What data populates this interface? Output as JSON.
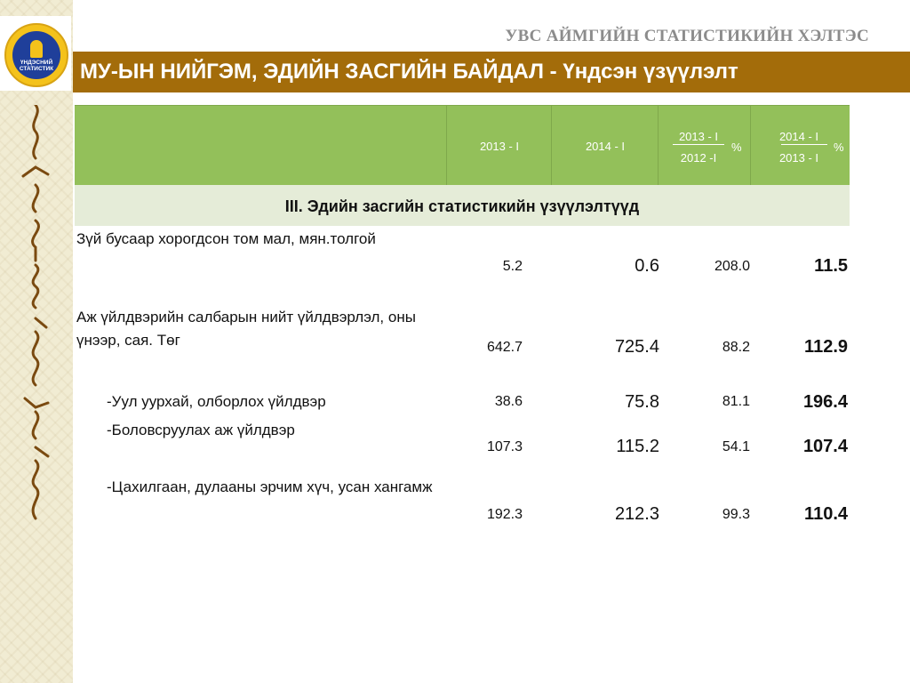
{
  "header": {
    "org_name": "УВС АЙМГИЙН СТАТИСТИКИЙН ХЭЛТЭС",
    "title": "МУ-ЫН НИЙГЭМ, ЭДИЙН ЗАСГИЙН БАЙДАЛ - Үндсэн үзүүлэлт"
  },
  "logo": {
    "line1": "ҮНДЭСНИЙ",
    "line2": "СТАТИСТИК"
  },
  "table": {
    "columns": {
      "c1": "2013 - I",
      "c2": "2014 - I",
      "c3_num": "2013 - I",
      "c3_den": "2012 -I",
      "c3_pct": "%",
      "c4_num": "2014 - I",
      "c4_den": "2013 - I",
      "c4_pct": "%"
    },
    "section": "III. Эдийн засгийн статистикийн үзүүлэлтүүд",
    "rows": [
      {
        "label": "Зүй бусаар хорогдсон том мал, мян.толгой",
        "v1": "5.2",
        "v2": "0.6",
        "v3": "208.0",
        "v4": "11.5"
      },
      {
        "label": "Аж үйлдвэрийн салбарын нийт үйлдвэрлэл, оны үнээр, сая. Төг",
        "v1": "642.7",
        "v2": "725.4",
        "v3": "88.2",
        "v4": "112.9"
      },
      {
        "label": "-Уул уурхай, олборлох үйлдвэр",
        "v1": "38.6",
        "v2": "75.8",
        "v3": "81.1",
        "v4": "196.4"
      },
      {
        "label": "-Боловсруулах аж үйлдвэр",
        "v1": "107.3",
        "v2": "115.2",
        "v3": "54.1",
        "v4": "107.4"
      },
      {
        "label": "-Цахилгаан, дулааны эрчим хүч, усан хангамж",
        "v1": "192.3",
        "v2": "212.3",
        "v3": "99.3",
        "v4": "110.4"
      }
    ]
  },
  "colors": {
    "title_bar": "#a36c0a",
    "table_header": "#93c05a",
    "section_bar": "#e5ecd8",
    "side_strip": "#f1ecd3"
  }
}
